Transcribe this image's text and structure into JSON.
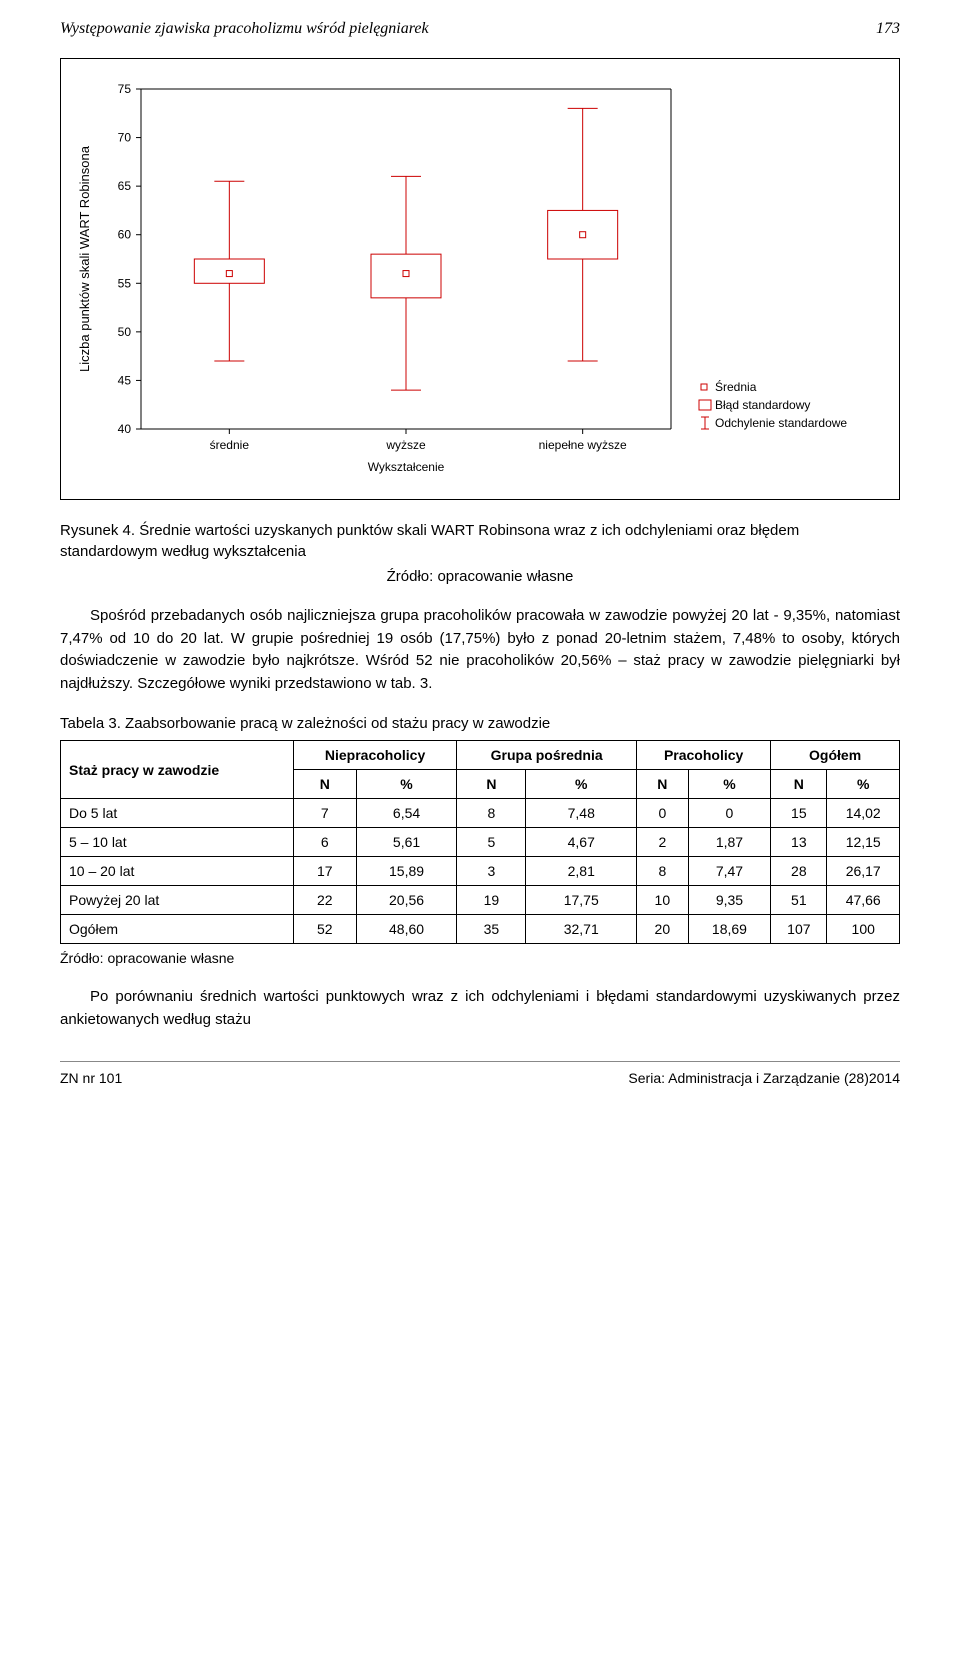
{
  "header": {
    "title": "Występowanie zjawiska pracoholizmu wśród pielęgniarek",
    "page_number": "173"
  },
  "boxplot": {
    "type": "boxplot_error",
    "ylabel": "Liczba punktów skali WART Robinsona",
    "xlabel": "Wykształcenie",
    "ylim": [
      40,
      75
    ],
    "ytick_step": 5,
    "yticks": [
      40,
      45,
      50,
      55,
      60,
      65,
      70,
      75
    ],
    "categories": [
      "średnie",
      "wyższe",
      "niepełne wyższe"
    ],
    "series": [
      {
        "category": "średnie",
        "mean": 56,
        "err_low": 55,
        "err_high": 57.5,
        "whisker_low": 47,
        "whisker_high": 65.5
      },
      {
        "category": "wyższe",
        "mean": 56,
        "err_low": 53.5,
        "err_high": 58,
        "whisker_low": 44,
        "whisker_high": 66
      },
      {
        "category": "niepełne wyższe",
        "mean": 60,
        "err_low": 57.5,
        "err_high": 62.5,
        "whisker_low": 47,
        "whisker_high": 73
      }
    ],
    "legend": {
      "mean": "Średnia",
      "err": "Błąd standardowy",
      "whisker": "Odchylenie standardowe"
    },
    "colors": {
      "line": "#cc0000",
      "background": "#ffffff",
      "axis": "#000000",
      "grid": "#ffffff"
    },
    "line_width": 1,
    "label_fontsize": 12,
    "ylabel_fontsize": 13
  },
  "figure_caption_label": "Rysunek 4.",
  "figure_caption": "Średnie wartości uzyskanych punktów skali WART Robinsona wraz z ich odchyleniami oraz błędem standardowym według wykształcenia",
  "source_label": "Źródło: opracowanie własne",
  "paragraph1": "Spośród przebadanych osób najliczniejsza grupa pracoholików pracowała w zawodzie powyżej 20 lat - 9,35%, natomiast 7,47% od 10 do 20 lat. W grupie pośredniej 19 osób (17,75%) było z ponad 20-letnim stażem, 7,48% to osoby, których doświadczenie w zawodzie było najkrótsze. Wśród 52 nie pracoholików 20,56% – staż pracy w zawodzie pielęgniarki był najdłuższy. Szczegółowe wyniki przedstawiono w tab. 3.",
  "table": {
    "caption": "Tabela 3. Zaabsorbowanie pracą w zależności od stażu pracy w zawodzie",
    "row_header_label": "Staż pracy w zawodzie",
    "group_headers": [
      "Niepracoholicy",
      "Grupa pośrednia",
      "Pracoholicy",
      "Ogółem"
    ],
    "sub_headers": [
      "N",
      "%",
      "N",
      "%",
      "N",
      "%",
      "N",
      "%"
    ],
    "rows": [
      {
        "label": "Do 5 lat",
        "cells": [
          "7",
          "6,54",
          "8",
          "7,48",
          "0",
          "0",
          "15",
          "14,02"
        ]
      },
      {
        "label": "5 – 10 lat",
        "cells": [
          "6",
          "5,61",
          "5",
          "4,67",
          "2",
          "1,87",
          "13",
          "12,15"
        ]
      },
      {
        "label": "10 – 20 lat",
        "cells": [
          "17",
          "15,89",
          "3",
          "2,81",
          "8",
          "7,47",
          "28",
          "26,17"
        ]
      },
      {
        "label": "Powyżej 20 lat",
        "cells": [
          "22",
          "20,56",
          "19",
          "17,75",
          "10",
          "9,35",
          "51",
          "47,66"
        ]
      },
      {
        "label": "Ogółem",
        "cells": [
          "52",
          "48,60",
          "35",
          "32,71",
          "20",
          "18,69",
          "107",
          "100"
        ]
      }
    ],
    "source": "Źródło: opracowanie własne"
  },
  "paragraph2": "Po porównaniu średnich wartości punktowych wraz z ich odchyleniami i błędami standardowymi uzyskiwanych przez ankietowanych według stażu",
  "footer": {
    "left": "ZN nr 101",
    "right": "Seria: Administracja i Zarządzanie (28)2014"
  }
}
